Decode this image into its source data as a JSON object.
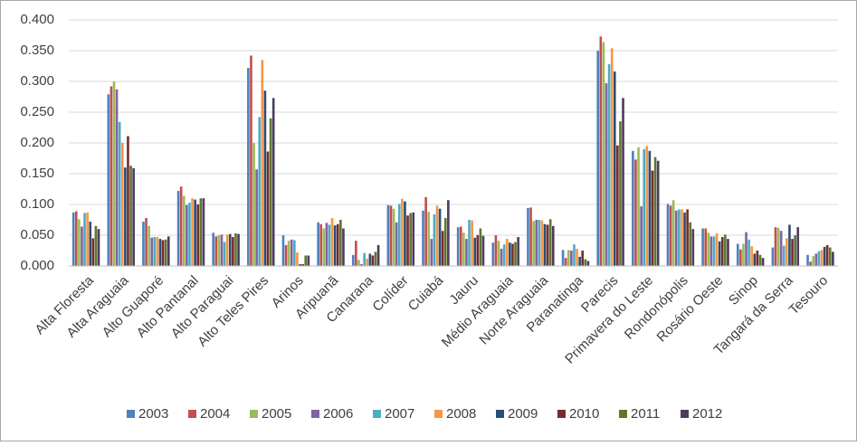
{
  "chart_data": {
    "type": "bar",
    "categories": [
      "Alta Floresta",
      "Alta Araguaia",
      "Alto Guaporé",
      "Alto Pantanal",
      "Alto Paraguai",
      "Alto Teles Pires",
      "Arinos",
      "Aripuanã",
      "Canarana",
      "Colíder",
      "Cuiabá",
      "Jauru",
      "Médio Araguaia",
      "Norte Araguaia",
      "Paranatinga",
      "Parecis",
      "Primavera do Leste",
      "Rondonópolis",
      "Rosário Oeste",
      "Sinop",
      "Tangará da Serra",
      "Tesouro"
    ],
    "series": [
      {
        "name": "2003",
        "color": "#4f81bd",
        "values": [
          0.087,
          0.279,
          0.072,
          0.122,
          0.054,
          0.322,
          0.05,
          0.071,
          0.018,
          0.099,
          0.09,
          0.063,
          0.038,
          0.094,
          0.026,
          0.35,
          0.187,
          0.101,
          0.061,
          0.036,
          0.03,
          0.018
        ]
      },
      {
        "name": "2004",
        "color": "#c0504d",
        "values": [
          0.089,
          0.292,
          0.078,
          0.129,
          0.048,
          0.342,
          0.034,
          0.068,
          0.041,
          0.098,
          0.112,
          0.064,
          0.05,
          0.095,
          0.013,
          0.373,
          0.173,
          0.098,
          0.061,
          0.027,
          0.063,
          0.007
        ]
      },
      {
        "name": "2005",
        "color": "#9bbb59",
        "values": [
          0.076,
          0.3,
          0.065,
          0.114,
          0.05,
          0.2,
          0.041,
          0.061,
          0.01,
          0.093,
          0.088,
          0.054,
          0.041,
          0.073,
          0.026,
          0.364,
          0.193,
          0.107,
          0.054,
          0.036,
          0.062,
          0.016
        ]
      },
      {
        "name": "2006",
        "color": "#8064a2",
        "values": [
          0.064,
          0.287,
          0.046,
          0.099,
          0.051,
          0.157,
          0.043,
          0.07,
          0.003,
          0.071,
          0.044,
          0.044,
          0.028,
          0.075,
          0.025,
          0.297,
          0.097,
          0.09,
          0.048,
          0.055,
          0.057,
          0.02
        ]
      },
      {
        "name": "2007",
        "color": "#4bacc6",
        "values": [
          0.086,
          0.234,
          0.047,
          0.103,
          0.039,
          0.242,
          0.042,
          0.067,
          0.021,
          0.101,
          0.084,
          0.075,
          0.035,
          0.075,
          0.035,
          0.328,
          0.19,
          0.092,
          0.048,
          0.043,
          0.033,
          0.024
        ]
      },
      {
        "name": "2008",
        "color": "#f79646",
        "values": [
          0.087,
          0.2,
          0.047,
          0.11,
          0.051,
          0.335,
          0.022,
          0.078,
          0.012,
          0.109,
          0.098,
          0.074,
          0.044,
          0.074,
          0.028,
          0.354,
          0.195,
          0.092,
          0.053,
          0.032,
          0.045,
          0.026
        ]
      },
      {
        "name": "2009",
        "color": "#2c4d75",
        "values": [
          0.072,
          0.16,
          0.044,
          0.108,
          0.052,
          0.285,
          0.003,
          0.066,
          0.02,
          0.105,
          0.093,
          0.046,
          0.038,
          0.068,
          0.015,
          0.316,
          0.187,
          0.087,
          0.04,
          0.02,
          0.067,
          0.031
        ]
      },
      {
        "name": "2010",
        "color": "#772c2a",
        "values": [
          0.045,
          0.211,
          0.042,
          0.1,
          0.047,
          0.186,
          0.003,
          0.068,
          0.017,
          0.082,
          0.057,
          0.05,
          0.036,
          0.067,
          0.025,
          0.196,
          0.155,
          0.092,
          0.047,
          0.025,
          0.044,
          0.034
        ]
      },
      {
        "name": "2011",
        "color": "#5f7530",
        "values": [
          0.065,
          0.163,
          0.043,
          0.11,
          0.053,
          0.24,
          0.017,
          0.075,
          0.023,
          0.086,
          0.078,
          0.061,
          0.039,
          0.076,
          0.011,
          0.235,
          0.177,
          0.071,
          0.051,
          0.018,
          0.05,
          0.03
        ]
      },
      {
        "name": "2012",
        "color": "#4d3b62",
        "values": [
          0.06,
          0.159,
          0.048,
          0.11,
          0.052,
          0.273,
          0.017,
          0.061,
          0.034,
          0.087,
          0.107,
          0.049,
          0.047,
          0.065,
          0.008,
          0.273,
          0.171,
          0.06,
          0.044,
          0.013,
          0.063,
          0.023
        ]
      }
    ],
    "ylim": [
      0,
      0.4
    ],
    "yticks": [
      {
        "value": 0,
        "label": "0.000"
      },
      {
        "value": 0.05,
        "label": "0.050"
      },
      {
        "value": 0.1,
        "label": "0.100"
      },
      {
        "value": 0.15,
        "label": "0.150"
      },
      {
        "value": 0.2,
        "label": "0.200"
      },
      {
        "value": 0.25,
        "label": "0.250"
      },
      {
        "value": 0.3,
        "label": "0.300"
      },
      {
        "value": 0.35,
        "label": "0.350"
      },
      {
        "value": 0.4,
        "label": "0.400"
      }
    ],
    "grid": true,
    "legend": "bottom"
  }
}
